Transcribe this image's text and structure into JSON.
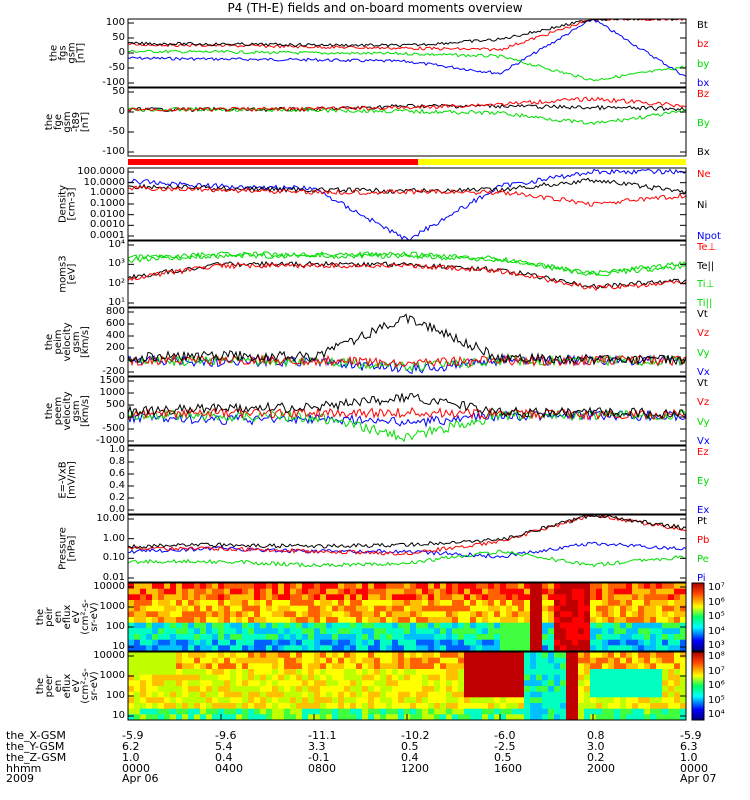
{
  "title": "P4 (TH-E) fields and on-board moments overview",
  "colors": {
    "black": "#000000",
    "red": "#ff0000",
    "green": "#00dd00",
    "blue": "#0000ff",
    "yellow": "#ffff00",
    "sun_red": "#ff0000"
  },
  "panels": [
    {
      "ylabel": [
        "the",
        "fgs",
        "gsm",
        "[nT]"
      ],
      "ticks": [
        "100",
        "50",
        "0",
        "-50",
        "-100"
      ],
      "legend": [
        {
          "text": "Bt",
          "color": "black"
        },
        {
          "text": "bz",
          "color": "red"
        },
        {
          "text": "by",
          "color": "green"
        },
        {
          "text": "bx",
          "color": "blue"
        }
      ]
    },
    {
      "ylabel": [
        "the",
        "fge",
        "gsm",
        "-t89",
        "[nT]"
      ],
      "ticks": [
        "50",
        "0",
        "-50",
        "-100"
      ],
      "legend": [
        {
          "text": "Bz",
          "color": "red"
        },
        {
          "text": "By",
          "color": "green"
        },
        {
          "text": "Bx",
          "color": "black"
        }
      ]
    },
    {
      "ylabel": [
        "Density",
        "[cm-3]"
      ],
      "ticks": [
        "100.0000",
        "10.0000",
        "1.0000",
        "0.1000",
        "0.0100",
        "0.0010",
        "0.0001"
      ],
      "legend": [
        {
          "text": "Ne",
          "color": "red"
        },
        {
          "text": "Ni",
          "color": "black"
        },
        {
          "text": "Npot",
          "color": "blue"
        }
      ]
    },
    {
      "ylabel": [
        "moms3",
        "[eV]"
      ],
      "ticks": [
        "10⁴",
        "10³",
        "10²",
        "10¹"
      ],
      "legend": [
        {
          "text": "Te⊥",
          "color": "red"
        },
        {
          "text": "Te||",
          "color": "black"
        },
        {
          "text": "Ti⊥",
          "color": "green"
        },
        {
          "text": "Ti||",
          "color": "green"
        }
      ]
    },
    {
      "ylabel": [
        "the",
        "peim",
        "velocity",
        "gsm",
        "[km/s]"
      ],
      "ticks": [
        "800",
        "600",
        "400",
        "200",
        "0",
        "-200"
      ],
      "legend": [
        {
          "text": "Vt",
          "color": "black"
        },
        {
          "text": "Vz",
          "color": "red"
        },
        {
          "text": "Vy",
          "color": "green"
        },
        {
          "text": "Vx",
          "color": "blue"
        }
      ]
    },
    {
      "ylabel": [
        "the",
        "peem",
        "velocity",
        "gsm",
        "[km/s]"
      ],
      "ticks": [
        "1500",
        "1000",
        "500",
        "0",
        "-500",
        "-1000"
      ],
      "legend": [
        {
          "text": "Vt",
          "color": "black"
        },
        {
          "text": "Vz",
          "color": "red"
        },
        {
          "text": "Vy",
          "color": "green"
        },
        {
          "text": "Vx",
          "color": "blue"
        }
      ]
    },
    {
      "ylabel": [
        "E=-VxB",
        "[mV/m]"
      ],
      "ticks": [
        "1.0",
        "0.8",
        "0.6",
        "0.4",
        "0.2",
        "0.0"
      ],
      "legend": [
        {
          "text": "Ez",
          "color": "red"
        },
        {
          "text": "Ey",
          "color": "green"
        },
        {
          "text": "Ex",
          "color": "blue"
        }
      ]
    },
    {
      "ylabel": [
        "Pressure",
        "[nPa]"
      ],
      "ticks": [
        "10.00",
        "1.00",
        "0.10",
        "0.01"
      ],
      "legend": [
        {
          "text": "Pt",
          "color": "black"
        },
        {
          "text": "Pb",
          "color": "red"
        },
        {
          "text": "Pe",
          "color": "green"
        },
        {
          "text": "Pi",
          "color": "blue"
        }
      ]
    },
    {
      "ylabel": [
        "the",
        "peir",
        "en",
        "eflux",
        "eV",
        "(cm²-s-",
        "sr-eV)"
      ],
      "ticks": [
        "10000",
        "1000",
        "100",
        "10"
      ],
      "cbar": [
        "10⁷",
        "10⁶",
        "10⁵",
        "10⁴",
        "10³"
      ]
    },
    {
      "ylabel": [
        "the",
        "peer",
        "en",
        "eflux",
        "eV",
        "(cm²-s-",
        "sr-eV)"
      ],
      "ticks": [
        "10000",
        "1000",
        "100",
        "10"
      ],
      "cbar": [
        "10⁸",
        "10⁷",
        "10⁶",
        "10⁵",
        "10⁴"
      ]
    }
  ],
  "footer": {
    "row_labels": [
      "the_X-GSM",
      "the_Y-GSM",
      "the_Z-GSM",
      "hhmm",
      "2009"
    ],
    "columns": [
      {
        "values": [
          "-5.9",
          "6.2",
          "1.0",
          "0000",
          "Apr 06"
        ]
      },
      {
        "values": [
          "-9.6",
          "5.4",
          "0.4",
          "0400",
          ""
        ]
      },
      {
        "values": [
          "-11.1",
          "3.3",
          "-0.1",
          "0800",
          ""
        ]
      },
      {
        "values": [
          "-10.2",
          "0.5",
          "0.4",
          "1200",
          ""
        ]
      },
      {
        "values": [
          "-6.0",
          "-2.5",
          "0.5",
          "1600",
          ""
        ]
      },
      {
        "values": [
          "0.8",
          "3.0",
          "0.2",
          "2000",
          ""
        ]
      },
      {
        "values": [
          "-5.9",
          "6.3",
          "1.0",
          "0000",
          "Apr 07"
        ]
      }
    ]
  },
  "chart_data": {
    "type": "line",
    "title": "P4 (TH-E) fields and on-board moments overview",
    "x": [
      "0000",
      "0400",
      "0800",
      "1200",
      "1600",
      "2000",
      "0000"
    ],
    "x_dates": [
      "Apr 06",
      "",
      "",
      "",
      "",
      "",
      "Apr 07"
    ],
    "panels": [
      {
        "name": "fgs gsm",
        "ylim": [
          -100,
          100
        ],
        "series": [
          {
            "name": "Bt",
            "values": [
              28,
              26,
              24,
              22,
              40,
              100,
              100
            ]
          },
          {
            "name": "bz",
            "values": [
              25,
              22,
              18,
              14,
              10,
              100,
              100
            ]
          },
          {
            "name": "by",
            "values": [
              5,
              3,
              0,
              -2,
              -10,
              -80,
              -40
            ]
          },
          {
            "name": "bx",
            "values": [
              -15,
              -18,
              -20,
              -25,
              -60,
              100,
              -70
            ]
          }
        ]
      },
      {
        "name": "fge gsm -t89",
        "ylim": [
          -130,
          60
        ],
        "series": [
          {
            "name": "Bz",
            "values": [
              0,
              0,
              2,
              5,
              15,
              30,
              10
            ]
          },
          {
            "name": "By",
            "values": [
              0,
              0,
              -2,
              -5,
              -10,
              -40,
              -5
            ]
          },
          {
            "name": "Bx",
            "values": [
              0,
              0,
              0,
              10,
              10,
              5,
              2
            ]
          }
        ]
      },
      {
        "name": "Density",
        "ylim": [
          0.0001,
          100
        ],
        "yscale": "log",
        "series": [
          {
            "name": "Ne",
            "values": [
              2,
              1.5,
              1,
              1,
              1,
              0.1,
              0.5
            ]
          },
          {
            "name": "Ni",
            "values": [
              3,
              2,
              1.5,
              1.2,
              1.5,
              10,
              1
            ]
          },
          {
            "name": "Npot",
            "values": [
              8,
              3,
              2,
              0.0001,
              3,
              50,
              50
            ]
          }
        ]
      },
      {
        "name": "moms3",
        "ylim": [
          10,
          30000
        ],
        "yscale": "log",
        "series": [
          {
            "name": "Te⊥",
            "values": [
              300,
              1500,
              1500,
              1500,
              800,
              100,
              200
            ]
          },
          {
            "name": "Te||",
            "values": [
              350,
              1800,
              1800,
              1800,
              900,
              120,
              250
            ]
          },
          {
            "name": "Ti⊥",
            "values": [
              3000,
              5000,
              5000,
              5000,
              3000,
              500,
              1500
            ]
          },
          {
            "name": "Ti||",
            "values": [
              4000,
              6000,
              6000,
              6000,
              3500,
              600,
              2000
            ]
          }
        ]
      },
      {
        "name": "peim velocity",
        "ylim": [
          -250,
          850
        ],
        "series": [
          {
            "name": "Vt",
            "values": [
              50,
              80,
              60,
              700,
              40,
              20,
              10
            ]
          },
          {
            "name": "Vz",
            "values": [
              0,
              10,
              5,
              -50,
              0,
              0,
              0
            ]
          },
          {
            "name": "Vy",
            "values": [
              0,
              -10,
              -5,
              -100,
              0,
              0,
              0
            ]
          },
          {
            "name": "Vx",
            "values": [
              0,
              -20,
              -10,
              -150,
              0,
              0,
              0
            ]
          }
        ]
      },
      {
        "name": "peem velocity",
        "ylim": [
          -1200,
          1500
        ],
        "series": [
          {
            "name": "Vt",
            "values": [
              150,
              250,
              300,
              700,
              100,
              80,
              60
            ]
          },
          {
            "name": "Vz",
            "values": [
              0,
              50,
              80,
              100,
              20,
              10,
              0
            ]
          },
          {
            "name": "Vy",
            "values": [
              0,
              -50,
              -80,
              -900,
              -20,
              0,
              0
            ]
          },
          {
            "name": "Vx",
            "values": [
              -100,
              -200,
              -150,
              -300,
              -50,
              -30,
              -20
            ]
          }
        ]
      },
      {
        "name": "E=-VxB",
        "ylim": [
          0,
          1
        ],
        "series": [
          {
            "name": "Ez",
            "values": []
          },
          {
            "name": "Ey",
            "values": []
          },
          {
            "name": "Ex",
            "values": []
          }
        ]
      },
      {
        "name": "Pressure",
        "ylim": [
          0.003,
          30
        ],
        "yscale": "log",
        "series": [
          {
            "name": "Pt",
            "values": [
              0.4,
              0.5,
              0.4,
              0.5,
              1.0,
              30,
              5
            ]
          },
          {
            "name": "Pb",
            "values": [
              0.3,
              0.3,
              0.2,
              0.15,
              0.8,
              30,
              4
            ]
          },
          {
            "name": "Pe",
            "values": [
              0.05,
              0.05,
              0.03,
              0.04,
              0.2,
              0.03,
              0.1
            ]
          },
          {
            "name": "Pi",
            "values": [
              0.2,
              0.3,
              0.2,
              0.2,
              0.1,
              0.6,
              0.3
            ]
          }
        ]
      }
    ]
  }
}
